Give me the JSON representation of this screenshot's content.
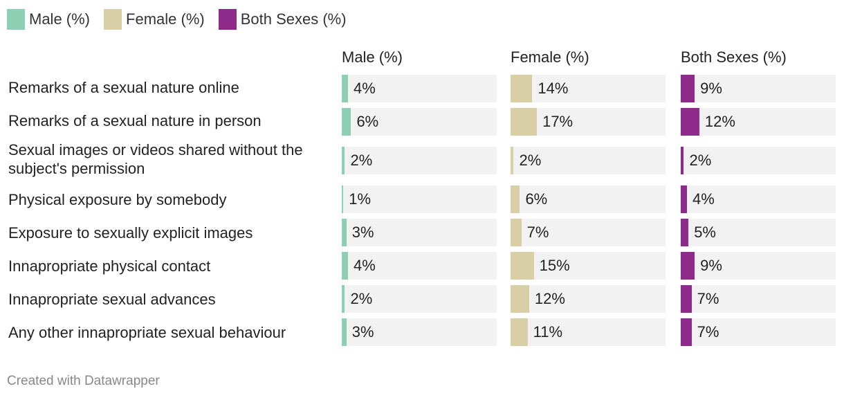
{
  "chart_data": {
    "type": "bar",
    "legend": [
      {
        "label": "Male (%)",
        "color": "#8ecfb3"
      },
      {
        "label": "Female (%)",
        "color": "#d9cfa6"
      },
      {
        "label": "Both Sexes (%)",
        "color": "#8d2a8a"
      }
    ],
    "column_headers": [
      "Male (%)",
      "Female (%)",
      "Both Sexes (%)"
    ],
    "categories": [
      "Remarks of a sexual nature online",
      "Remarks of a sexual nature in person",
      "Sexual images or videos shared without the subject's permission",
      "Physical exposure by somebody",
      "Exposure to sexually explicit images",
      "Innapropriate physical contact",
      "Innapropriate sexual advances",
      "Any other innapropriate sexual behaviour"
    ],
    "series": [
      {
        "name": "Male (%)",
        "color": "#8ecfb3",
        "values": [
          4,
          6,
          2,
          1,
          3,
          4,
          2,
          3
        ]
      },
      {
        "name": "Female (%)",
        "color": "#d9cfa6",
        "values": [
          14,
          17,
          2,
          6,
          7,
          15,
          12,
          11
        ]
      },
      {
        "name": "Both Sexes (%)",
        "color": "#8d2a8a",
        "values": [
          9,
          12,
          2,
          4,
          5,
          9,
          7,
          7
        ]
      }
    ],
    "value_suffix": "%",
    "xlim": [
      0,
      100
    ]
  },
  "footer": "Created with Datawrapper"
}
